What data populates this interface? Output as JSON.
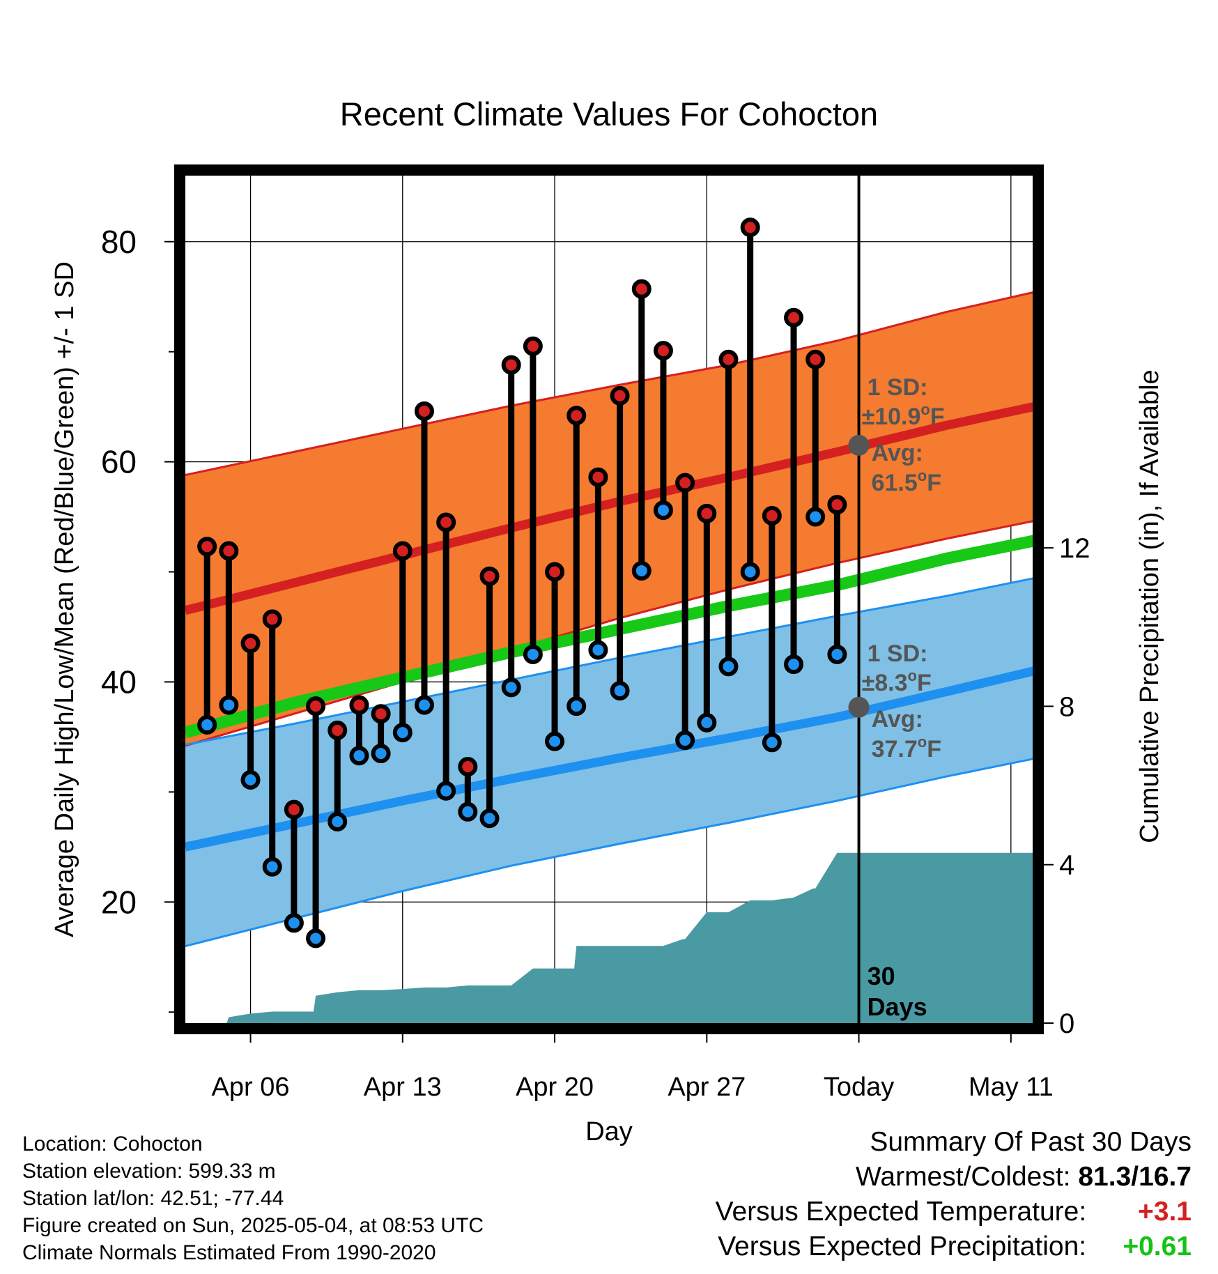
{
  "chart_data": {
    "type": "line",
    "title": "Recent Climate Values For Cohocton",
    "xlabel": "Day",
    "ylabel_left": "Average Daily High/Low/Mean (Red/Blue/Green) +/- 1 SD",
    "ylabel_right": "Cumulative Precipitation (in), If Available",
    "x_tick_labels": [
      "Apr 06",
      "Apr 13",
      "Apr 20",
      "Apr 27",
      "Today",
      "May 11"
    ],
    "x_tick_days": [
      6,
      13,
      20,
      27,
      34,
      41
    ],
    "x_range_days": [
      3,
      42
    ],
    "ylim_left": [
      9,
      86
    ],
    "y_ticks_left": [
      20,
      40,
      60,
      80
    ],
    "y_ticks_right": [
      0,
      4,
      8,
      12
    ],
    "ylim_right": [
      0,
      21.4
    ],
    "grid": true,
    "today_day": 34,
    "today_label": "30 Days",
    "colors": {
      "high_band": "#f47b2f",
      "high_line": "#d42020",
      "low_band": "#80c0e6",
      "low_line": "#1e90f0",
      "mean_line": "#17c817",
      "precip": "#4a9aa3",
      "high_dot": "#d42020",
      "low_dot": "#1e90f0",
      "annot": "#555555"
    },
    "normals": {
      "days": [
        3,
        8,
        13,
        18,
        23,
        28,
        33,
        38,
        42.5
      ],
      "high_avg": [
        46.5,
        49.0,
        51.5,
        54.0,
        56.4,
        58.6,
        60.9,
        63.3,
        65.2
      ],
      "high_sd_upper": [
        58.8,
        60.9,
        63.0,
        65.1,
        67.0,
        68.8,
        71.0,
        73.6,
        75.6
      ],
      "high_sd_lower": [
        34.2,
        37.1,
        40.0,
        42.9,
        45.8,
        48.4,
        50.8,
        53.0,
        54.8
      ],
      "low_avg": [
        25.0,
        27.1,
        29.2,
        31.2,
        33.1,
        34.9,
        36.8,
        39.1,
        41.2
      ],
      "low_sd_upper": [
        34.3,
        36.2,
        38.2,
        40.2,
        42.2,
        44.1,
        46.0,
        47.8,
        49.6
      ],
      "low_sd_lower": [
        16.0,
        18.5,
        21.0,
        23.3,
        25.3,
        27.2,
        29.2,
        31.4,
        33.2
      ],
      "mean": [
        35.4,
        38.1,
        40.4,
        42.7,
        44.8,
        46.9,
        48.8,
        51.2,
        53.0
      ]
    },
    "series": [
      {
        "name": "High",
        "days": [
          4,
          5,
          6,
          7,
          8,
          9,
          10,
          11,
          12,
          13,
          14,
          15,
          16,
          17,
          18,
          19,
          20,
          21,
          22,
          23,
          24,
          25,
          26,
          27,
          28,
          29,
          30,
          31,
          32,
          33
        ],
        "values": [
          52.3,
          51.9,
          43.5,
          45.7,
          28.4,
          37.8,
          35.6,
          37.9,
          37.1,
          51.9,
          64.6,
          54.5,
          32.3,
          49.6,
          68.8,
          70.5,
          50.0,
          64.2,
          58.6,
          66.0,
          75.7,
          70.1,
          58.1,
          55.3,
          69.3,
          81.3,
          55.1,
          73.1,
          69.3,
          56.1
        ]
      },
      {
        "name": "Low",
        "days": [
          4,
          5,
          6,
          7,
          8,
          9,
          10,
          11,
          12,
          13,
          14,
          15,
          16,
          17,
          18,
          19,
          20,
          21,
          22,
          23,
          24,
          25,
          26,
          27,
          28,
          29,
          30,
          31,
          32,
          33
        ],
        "values": [
          36.1,
          37.9,
          31.1,
          23.2,
          18.1,
          16.7,
          27.3,
          33.3,
          33.5,
          35.4,
          37.9,
          30.1,
          28.2,
          27.6,
          39.5,
          42.5,
          34.6,
          37.8,
          42.9,
          39.2,
          50.1,
          55.6,
          34.7,
          36.3,
          41.4,
          50.0,
          34.5,
          41.6,
          55.0,
          42.5
        ]
      },
      {
        "name": "Cumulative Precipitation",
        "days": [
          3,
          4,
          4.9,
          5,
          6,
          7,
          8,
          8.9,
          9,
          10,
          11,
          12,
          13,
          14,
          15,
          16,
          17,
          17.9,
          18,
          19,
          20,
          20.9,
          21,
          22,
          23,
          24,
          25,
          25.9,
          26,
          27,
          27.9,
          28,
          29,
          29.9,
          30,
          31,
          31.9,
          32,
          33,
          34,
          42.5
        ],
        "values": [
          0,
          0,
          0,
          0.15,
          0.24,
          0.29,
          0.29,
          0.29,
          0.69,
          0.78,
          0.83,
          0.83,
          0.86,
          0.9,
          0.9,
          0.95,
          0.95,
          0.95,
          0.95,
          1.38,
          1.38,
          1.38,
          1.95,
          1.95,
          1.95,
          1.95,
          1.95,
          2.12,
          2.12,
          2.8,
          2.8,
          2.8,
          3.1,
          3.1,
          3.1,
          3.17,
          3.4,
          3.4,
          4.3,
          4.3,
          4.3
        ]
      }
    ],
    "annotations": {
      "high": {
        "sd_label": "1 SD:",
        "sd_value": "±10.9",
        "avg_label": "Avg:",
        "avg_value": "61.5",
        "unit": "F",
        "degree": "o",
        "avg_num": 61.5
      },
      "low": {
        "sd_label": "1 SD:",
        "sd_value": "±8.3",
        "avg_label": "Avg:",
        "avg_value": "37.7",
        "unit": "F",
        "degree": "o",
        "avg_num": 37.7
      }
    }
  },
  "footer": {
    "location": "Location: Cohocton",
    "elevation": "Station elevation: 599.33 m",
    "latlon": "Station lat/lon: 42.51; -77.44",
    "created": "Figure created on Sun, 2025-05-04, at 08:53 UTC",
    "normals": "Climate Normals Estimated From 1990-2020"
  },
  "summary": {
    "title": "Summary Of Past 30 Days",
    "warmest_label": "Warmest/Coldest:",
    "warmest_value": "81.3/16.7",
    "temp_label": "Versus Expected Temperature:",
    "temp_value": "+3.1",
    "precip_label": "Versus Expected Precipitation:",
    "precip_value": "+0.61"
  }
}
